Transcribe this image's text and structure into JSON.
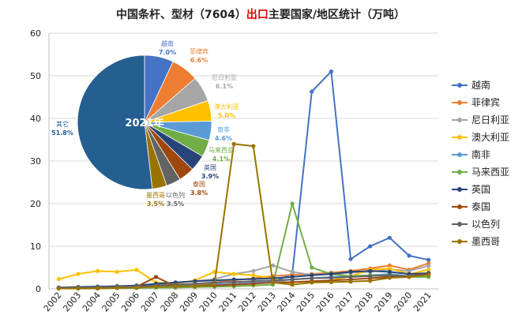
{
  "chart_data": {
    "type": "line",
    "title_parts": [
      {
        "text": "中国条杆、型材（7604）",
        "color": "#222222"
      },
      {
        "text": "出口",
        "color": "#e60000"
      },
      {
        "text": "主要国家/地区统计（万吨）",
        "color": "#222222"
      }
    ],
    "x": [
      "2002",
      "2003",
      "2004",
      "2005",
      "2006",
      "2007",
      "2008",
      "2009",
      "2010",
      "2011",
      "2012",
      "2013",
      "2014",
      "2015",
      "2016",
      "2017",
      "2018",
      "2019",
      "2020",
      "2021"
    ],
    "ylim": [
      0,
      60
    ],
    "yticks": [
      "0",
      "10",
      "20",
      "30",
      "40",
      "50",
      "60"
    ],
    "grid": true,
    "legend_position": "right",
    "series": [
      {
        "name": "越南",
        "color": "#4472c4",
        "values": [
          0.1,
          0.1,
          0.2,
          0.3,
          0.5,
          0.8,
          0.9,
          1.0,
          1.2,
          1.0,
          1.3,
          1.6,
          3.5,
          46.3,
          51.0,
          7.0,
          10.0,
          12.0,
          7.8,
          6.8
        ]
      },
      {
        "name": "菲律宾",
        "color": "#ed7d31",
        "values": [
          0.1,
          0.2,
          0.4,
          0.5,
          0.6,
          0.8,
          0.9,
          1.0,
          1.5,
          2.0,
          2.5,
          3.0,
          3.3,
          3.5,
          3.8,
          4.2,
          4.8,
          5.5,
          4.5,
          6.0
        ]
      },
      {
        "name": "尼日利亚",
        "color": "#a5a5a5",
        "values": [
          0.3,
          0.5,
          0.6,
          0.7,
          0.8,
          1.0,
          1.5,
          1.8,
          2.3,
          3.5,
          4.2,
          5.5,
          4.0,
          3.3,
          3.5,
          3.8,
          4.0,
          4.6,
          4.2,
          5.4
        ]
      },
      {
        "name": "澳大利亚",
        "color": "#ffc000",
        "values": [
          2.3,
          3.5,
          4.2,
          4.0,
          4.5,
          1.5,
          1.2,
          2.0,
          4.0,
          3.5,
          3.2,
          2.5,
          1.0,
          1.5,
          2.0,
          3.0,
          4.5,
          4.8,
          3.5,
          4.5
        ]
      },
      {
        "name": "南非",
        "color": "#5b9bd5",
        "values": [
          0.2,
          0.3,
          0.3,
          0.4,
          0.5,
          0.6,
          0.7,
          0.8,
          1.0,
          1.2,
          1.5,
          1.8,
          2.2,
          2.5,
          2.8,
          3.0,
          3.2,
          3.5,
          3.0,
          3.7
        ]
      },
      {
        "name": "马来西亚",
        "color": "#70ad47",
        "values": [
          0.1,
          0.1,
          0.1,
          0.2,
          0.2,
          0.3,
          0.3,
          0.4,
          0.5,
          0.6,
          0.8,
          1.0,
          20.0,
          5.0,
          3.5,
          3.0,
          3.2,
          3.0,
          2.8,
          2.8
        ]
      },
      {
        "name": "英国",
        "color": "#264478",
        "values": [
          0.3,
          0.4,
          0.5,
          0.6,
          0.8,
          1.2,
          1.5,
          1.8,
          2.0,
          2.2,
          2.3,
          2.5,
          2.8,
          3.2,
          3.5,
          4.0,
          4.2,
          4.0,
          3.5,
          3.7
        ]
      },
      {
        "name": "泰国",
        "color": "#9e480e",
        "values": [
          0.1,
          0.1,
          0.2,
          0.3,
          0.5,
          2.8,
          0.6,
          0.7,
          0.8,
          1.0,
          1.2,
          1.5,
          1.6,
          1.8,
          2.0,
          2.2,
          2.5,
          2.8,
          3.0,
          3.5
        ]
      },
      {
        "name": "以色列",
        "color": "#636363",
        "values": [
          0.2,
          0.3,
          0.4,
          0.5,
          0.6,
          0.8,
          1.0,
          1.2,
          1.5,
          1.6,
          1.8,
          2.0,
          2.2,
          2.5,
          2.6,
          2.8,
          3.0,
          3.2,
          3.0,
          3.3
        ]
      },
      {
        "name": "墨西哥",
        "color": "#997300",
        "values": [
          0.1,
          0.1,
          0.1,
          0.2,
          0.3,
          0.5,
          0.6,
          0.7,
          1.0,
          34.0,
          33.5,
          1.5,
          1.0,
          1.5,
          1.6,
          1.7,
          1.9,
          2.6,
          2.8,
          3.3
        ]
      }
    ],
    "inset_pie": {
      "type": "pie",
      "center_label": "2021年",
      "slices": [
        {
          "name": "越南",
          "pct_label": "7.0%",
          "value": 7.0,
          "color": "#4472c4"
        },
        {
          "name": "菲律宾",
          "pct_label": "6.6%",
          "value": 6.6,
          "color": "#ed7d31"
        },
        {
          "name": "尼日利亚",
          "pct_label": "6.1%",
          "value": 6.1,
          "color": "#a5a5a5"
        },
        {
          "name": "澳大利亚",
          "pct_label": "5.0%",
          "value": 5.0,
          "color": "#ffc000"
        },
        {
          "name": "南非",
          "pct_label": "4.6%",
          "value": 4.6,
          "color": "#5b9bd5"
        },
        {
          "name": "马来西亚",
          "pct_label": "4.1%",
          "value": 4.1,
          "color": "#70ad47"
        },
        {
          "name": "英国",
          "pct_label": "3.9%",
          "value": 3.9,
          "color": "#264478"
        },
        {
          "name": "泰国",
          "pct_label": "3.8%",
          "value": 3.8,
          "color": "#9e480e"
        },
        {
          "name": "以色列",
          "pct_label": "3.5%",
          "value": 3.5,
          "color": "#636363"
        },
        {
          "name": "墨西哥",
          "pct_label": "3.5%",
          "value": 3.5,
          "color": "#997300"
        },
        {
          "name": "其它",
          "pct_label": "51.8%",
          "value": 51.8,
          "color": "#255e91"
        }
      ]
    }
  }
}
